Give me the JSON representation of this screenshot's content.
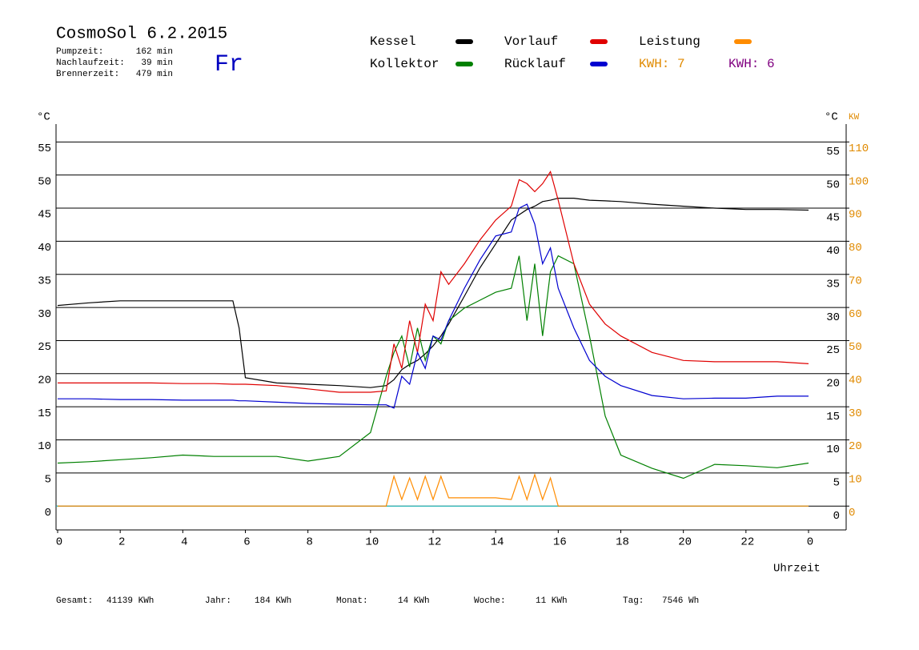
{
  "header": {
    "title": "CosmoSol 6.2.2015",
    "day": "Fr",
    "stats": [
      {
        "label": "Pumpzeit:",
        "value": "162 min"
      },
      {
        "label": "Nachlaufzeit:",
        "value": "39 min"
      },
      {
        "label": "Brennerzeit:",
        "value": "479 min"
      }
    ],
    "kwh": [
      {
        "label": "KWH: 7",
        "color": "#e08a00"
      },
      {
        "label": "KWH: 6",
        "color": "#800080"
      }
    ]
  },
  "chart_data": {
    "type": "line",
    "y_unit": "°C",
    "y2_unit_left": "°C",
    "y2_unit": "KW",
    "xlabel": "Uhrzeit",
    "x": [
      0,
      1,
      2,
      3,
      4,
      5,
      5.6,
      5.8,
      6,
      7,
      8,
      9,
      10,
      10.5,
      10.75,
      11,
      11.25,
      11.5,
      11.75,
      12,
      12.25,
      12.5,
      13,
      13.5,
      14,
      14.5,
      14.75,
      15,
      15.25,
      15.5,
      15.75,
      16,
      16.5,
      17,
      17.5,
      18,
      19,
      20,
      21,
      22,
      23,
      24
    ],
    "xlim": [
      0,
      24
    ],
    "xticks": [
      0,
      2,
      4,
      6,
      8,
      10,
      12,
      14,
      16,
      18,
      20,
      22,
      {
        "value": 24,
        "label": "0"
      }
    ],
    "ylim": [
      -3.6,
      57.7
    ],
    "yticks": [
      0,
      5,
      10,
      15,
      20,
      25,
      30,
      35,
      40,
      45,
      50,
      55
    ],
    "y2lim": [
      -7.2,
      115.4
    ],
    "y2ticks": [
      0,
      10,
      20,
      30,
      40,
      50,
      60,
      70,
      80,
      90,
      100,
      110
    ],
    "grid": true,
    "series": [
      {
        "name": "Kessel",
        "color": "#000000",
        "values": [
          30.3,
          30.7,
          31,
          31,
          31,
          31,
          31,
          26.9,
          19.4,
          18.6,
          18.4,
          18.2,
          17.9,
          18.2,
          19.1,
          20.6,
          21.4,
          22,
          23,
          24.2,
          25.7,
          27.5,
          31.7,
          36,
          39.6,
          43.2,
          44,
          44.8,
          45.3,
          46,
          46.2,
          46.5,
          46.5,
          46.2,
          46.1,
          46,
          45.6,
          45.3,
          45,
          44.8,
          44.8,
          44.7
        ]
      },
      {
        "name": "Kollektor",
        "color": "#008000",
        "values": [
          6.5,
          6.7,
          7,
          7.3,
          7.7,
          7.5,
          7.5,
          7.5,
          7.5,
          7.5,
          6.8,
          7.5,
          11.1,
          19.6,
          23.2,
          25.7,
          21,
          26.9,
          22,
          25.7,
          24.5,
          28,
          29.9,
          31.1,
          32.3,
          32.9,
          37.8,
          28,
          36.6,
          25.7,
          35.4,
          37.8,
          36.6,
          25.7,
          13.6,
          7.7,
          5.7,
          4.2,
          6.3,
          6.1,
          5.8,
          6.5
        ]
      },
      {
        "name": "Vorlauf",
        "color": "#e00000",
        "values": [
          18.6,
          18.6,
          18.6,
          18.6,
          18.5,
          18.5,
          18.4,
          18.4,
          18.4,
          18.2,
          17.7,
          17.2,
          17.2,
          17.4,
          24.5,
          20.8,
          28,
          23.2,
          30.5,
          28,
          35.4,
          33.5,
          36.6,
          40.2,
          43.2,
          45.3,
          49.3,
          48.7,
          47.5,
          48.7,
          50.5,
          46.2,
          36.6,
          30.5,
          27.5,
          25.7,
          23.2,
          22,
          21.8,
          21.8,
          21.8,
          21.5
        ]
      },
      {
        "name": "Rücklauf",
        "color": "#0000d0",
        "values": [
          16.2,
          16.2,
          16.1,
          16.1,
          16,
          16,
          16,
          15.9,
          15.9,
          15.7,
          15.5,
          15.4,
          15.3,
          15.3,
          14.8,
          19.6,
          18.4,
          23.2,
          20.8,
          25.7,
          25.1,
          28,
          32.9,
          37.2,
          40.8,
          41.4,
          45,
          45.6,
          42.6,
          36.6,
          39,
          32.9,
          26.9,
          22,
          19.6,
          18.2,
          16.7,
          16.2,
          16.3,
          16.3,
          16.6,
          16.6
        ]
      },
      {
        "name": "Leistung",
        "color": "#ff8c00",
        "axis": "y2",
        "values": [
          0,
          0,
          0,
          0,
          0,
          0,
          0,
          0,
          0,
          0,
          0,
          0,
          0,
          0,
          9,
          2,
          8.5,
          2,
          9,
          2,
          9,
          2.5,
          2.5,
          2.5,
          2.5,
          2,
          9,
          2,
          9.5,
          2,
          8.5,
          0,
          0,
          0,
          0,
          0,
          0,
          0,
          0,
          0,
          0,
          0
        ]
      }
    ]
  },
  "footer": [
    {
      "label": "Gesamt:",
      "value": "41139 KWh"
    },
    {
      "label": "Jahr:",
      "value": "184 KWh"
    },
    {
      "label": "Monat:",
      "value": "14 KWh"
    },
    {
      "label": "Woche:",
      "value": "11 KWh"
    },
    {
      "label": "Tag:",
      "value": "7546 Wh"
    }
  ]
}
